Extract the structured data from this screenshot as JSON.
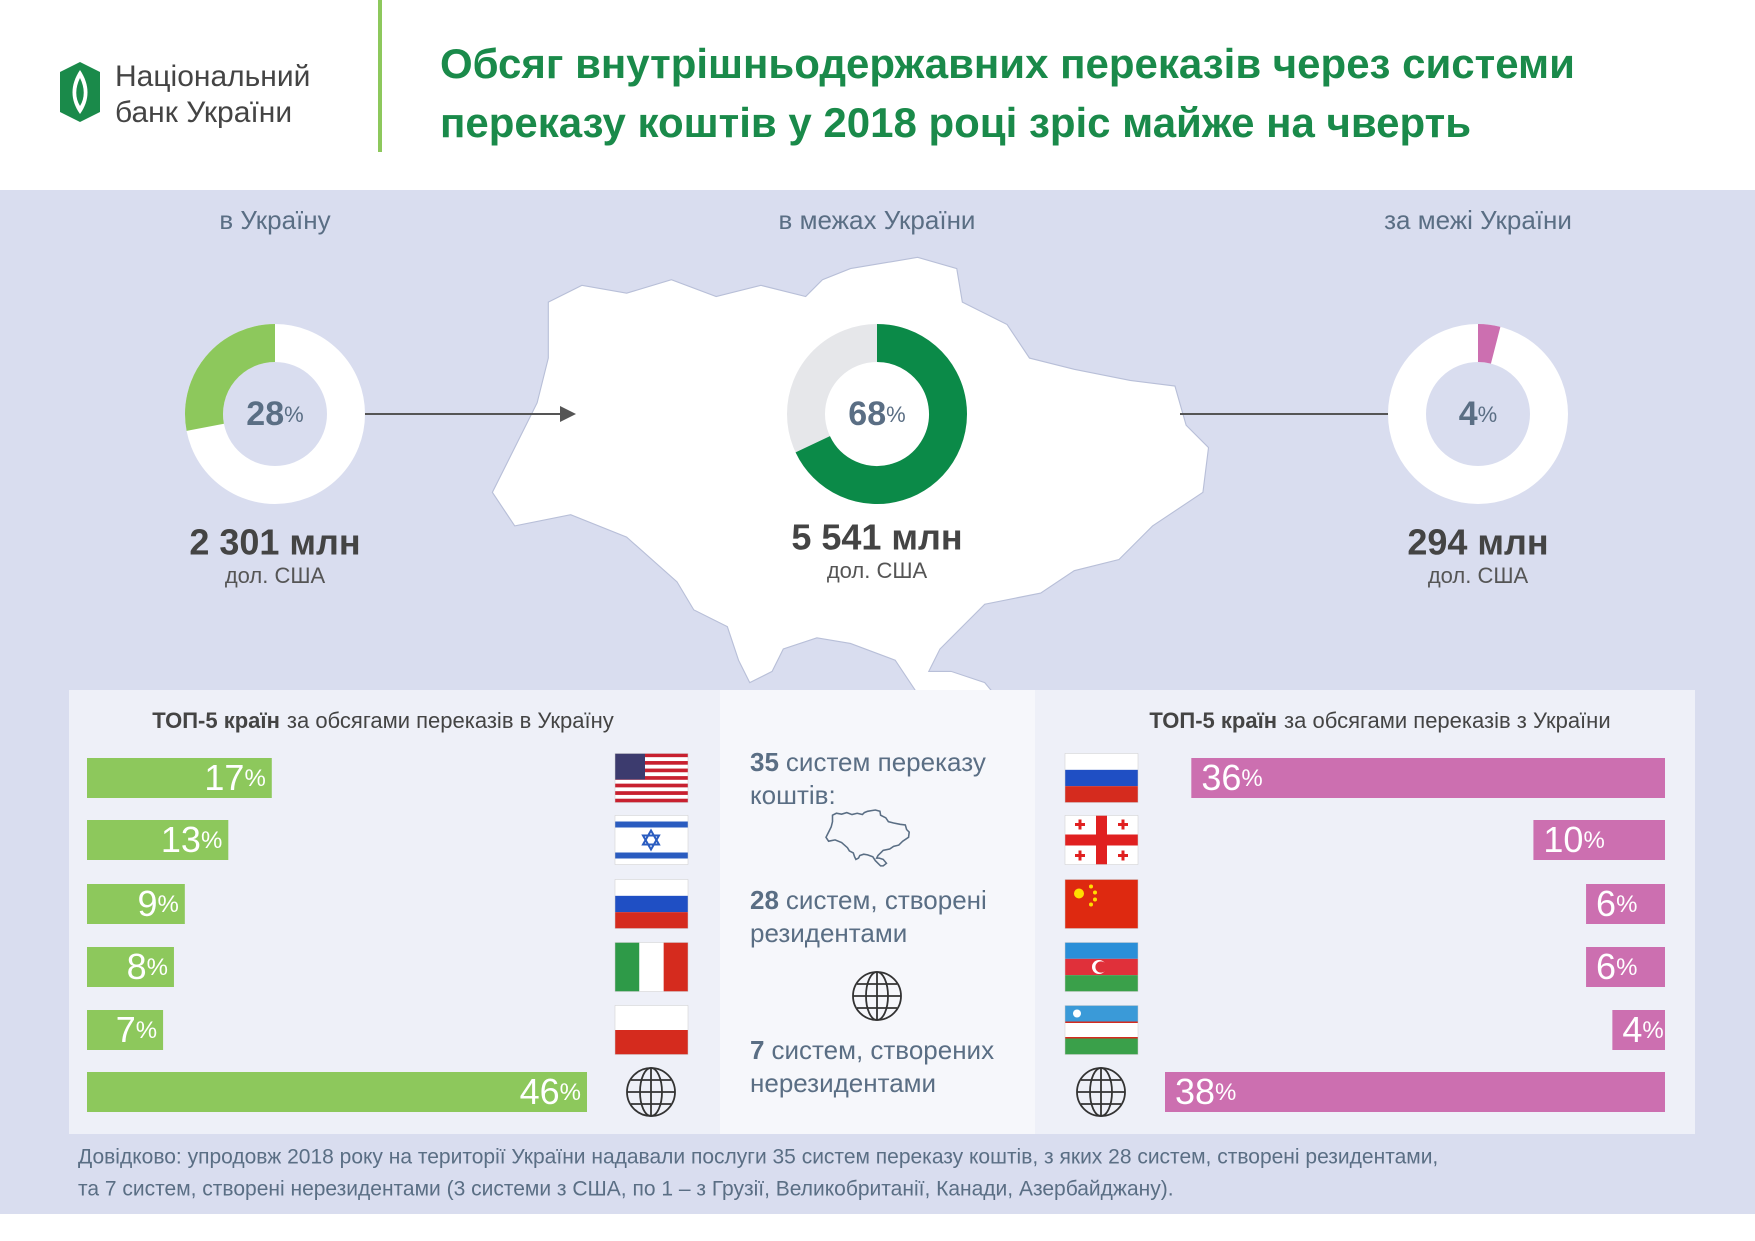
{
  "header": {
    "logo_text": [
      "Національний",
      "банк України"
    ],
    "title": [
      "Обсяг внутрішньодержавних переказів через системи",
      "переказу коштів у 2018 році зріс майже на чверть"
    ]
  },
  "chart_data": [
    {
      "type": "donut",
      "title": "в Україну",
      "values": [
        28
      ],
      "unit": "%",
      "color": "#8dc85c",
      "clockwise": false,
      "amount": "2 301 млн",
      "currency": "дол. США"
    },
    {
      "type": "donut",
      "title": "в межах України",
      "values": [
        68
      ],
      "unit": "%",
      "color": "#0b8a48",
      "clockwise": true,
      "amount": "5 541 млн",
      "currency": "дол. США"
    },
    {
      "type": "donut",
      "title": "за межі України",
      "values": [
        4
      ],
      "unit": "%",
      "color": "#cc6fb0",
      "clockwise": true,
      "amount": "294 млн",
      "currency": "дол. США"
    },
    {
      "type": "bar",
      "title_bold": "ТОП-5 країн",
      "title": "за обсягами переказів в Україну",
      "values": [
        17,
        13,
        9,
        8,
        7,
        46
      ],
      "unit": "%",
      "color": "#8dc85c",
      "xlim": [
        0,
        46
      ],
      "align": "left"
    },
    {
      "type": "bar",
      "title_bold": "ТОП-5 країн",
      "title": "за обсягами переказів з України",
      "values": [
        36,
        10,
        6,
        6,
        4,
        38
      ],
      "unit": "%",
      "color": "#cc6fb0",
      "xlim": [
        0,
        38
      ],
      "align": "right"
    }
  ],
  "systems": [
    {
      "count": 35,
      "text": [
        "систем переказу",
        "коштів:"
      ]
    },
    {
      "count": 28,
      "text": [
        "систем, створені",
        "резидентами"
      ]
    },
    {
      "count": 7,
      "text": [
        "систем, створених",
        "нерезидентами"
      ]
    }
  ],
  "footnote": [
    "Довідково: упродовж 2018 року на території України надавали послуги 35 систем переказу коштів, з яких 28 систем, створені резидентами,",
    "та 7 систем, створені нерезидентами (3 системи з США, по 1 – з Грузії, Великобританії, Канади, Азербайджану)."
  ]
}
